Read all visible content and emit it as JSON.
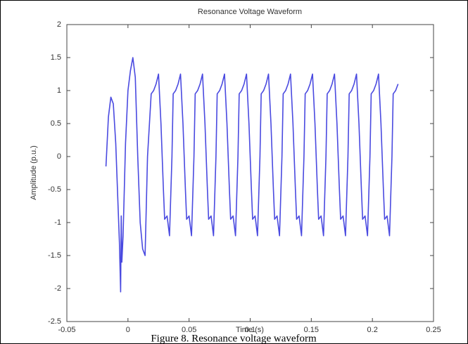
{
  "chart_data": {
    "type": "line",
    "title": "Resonance Voltage Waveform",
    "xlabel": "Time (s)",
    "ylabel": "Amplitude (p.u.)",
    "caption": "Figure 8. Resonance voltage waveform",
    "color": "#4a4ae0",
    "xlim": [
      -0.05,
      0.25
    ],
    "ylim": [
      -2.5,
      2
    ],
    "xticks": [
      -0.05,
      0,
      0.05,
      0.1,
      0.15,
      0.2,
      0.25
    ],
    "yticks": [
      -2.5,
      -2,
      -1.5,
      -1,
      -0.5,
      0,
      0.5,
      1,
      1.5,
      2
    ],
    "grid": false,
    "x": [
      -0.018,
      -0.016,
      -0.014,
      -0.012,
      -0.01,
      -0.008,
      -0.007,
      -0.006,
      -0.0055,
      -0.005,
      -0.004,
      -0.002,
      0.0,
      0.002,
      0.004,
      0.006,
      0.008,
      0.01,
      0.012,
      0.014,
      0.016,
      0.019,
      0.021,
      0.023,
      0.025,
      0.027,
      0.029,
      0.03,
      0.032,
      0.034,
      0.036,
      0.037,
      0.039,
      0.041,
      0.043,
      0.045,
      0.047,
      0.048,
      0.05,
      0.052,
      0.054,
      0.055,
      0.057,
      0.059,
      0.061,
      0.063,
      0.065,
      0.066,
      0.068,
      0.07,
      0.072,
      0.073,
      0.075,
      0.077,
      0.079,
      0.081,
      0.083,
      0.084,
      0.086,
      0.088,
      0.09,
      0.091,
      0.093,
      0.095,
      0.097,
      0.099,
      0.101,
      0.102,
      0.104,
      0.106,
      0.108,
      0.109,
      0.111,
      0.113,
      0.115,
      0.117,
      0.119,
      0.12,
      0.122,
      0.124,
      0.126,
      0.127,
      0.129,
      0.131,
      0.133,
      0.135,
      0.137,
      0.138,
      0.14,
      0.142,
      0.144,
      0.145,
      0.147,
      0.149,
      0.151,
      0.153,
      0.155,
      0.156,
      0.158,
      0.16,
      0.162,
      0.163,
      0.165,
      0.167,
      0.169,
      0.171,
      0.173,
      0.174,
      0.176,
      0.178,
      0.18,
      0.181,
      0.183,
      0.185,
      0.187,
      0.189,
      0.191,
      0.192,
      0.194,
      0.196,
      0.198,
      0.199,
      0.201,
      0.203,
      0.205,
      0.207,
      0.209,
      0.21,
      0.212,
      0.214,
      0.216,
      0.217,
      0.219,
      0.221
    ],
    "values": [
      -0.15,
      0.6,
      0.9,
      0.8,
      0.2,
      -0.8,
      -1.3,
      -2.05,
      -0.9,
      -1.6,
      -1.2,
      0.2,
      1.0,
      1.3,
      1.5,
      1.2,
      0.0,
      -1.0,
      -1.4,
      -1.5,
      0.0,
      0.95,
      1.0,
      1.1,
      1.25,
      0.5,
      -0.5,
      -0.95,
      -0.9,
      -1.2,
      0,
      0.95,
      1.0,
      1.1,
      1.25,
      0.5,
      -0.5,
      -0.95,
      -0.9,
      -1.2,
      0,
      0.95,
      1.0,
      1.1,
      1.25,
      0.5,
      -0.5,
      -0.95,
      -0.9,
      -1.2,
      0,
      0.95,
      1.0,
      1.1,
      1.25,
      0.5,
      -0.5,
      -0.95,
      -0.9,
      -1.2,
      0,
      0.95,
      1.0,
      1.1,
      1.25,
      0.5,
      -0.5,
      -0.95,
      -0.9,
      -1.2,
      0,
      0.95,
      1.0,
      1.1,
      1.25,
      0.5,
      -0.5,
      -0.95,
      -0.9,
      -1.2,
      0,
      0.95,
      1.0,
      1.1,
      1.25,
      0.5,
      -0.5,
      -0.95,
      -0.9,
      -1.2,
      0,
      0.95,
      1.0,
      1.1,
      1.25,
      0.5,
      -0.5,
      -0.95,
      -0.9,
      -1.2,
      0,
      0.95,
      1.0,
      1.1,
      1.25,
      0.5,
      -0.5,
      -0.95,
      -0.9,
      -1.2,
      0,
      0.95,
      1.0,
      1.1,
      1.25,
      0.5,
      -0.5,
      -0.95,
      -0.9,
      -1.2,
      0,
      0.95,
      1.0,
      1.1,
      1.25,
      0.5,
      -0.5,
      -0.95,
      -0.9,
      -1.2,
      0,
      0.95,
      1.0,
      1.1
    ]
  }
}
